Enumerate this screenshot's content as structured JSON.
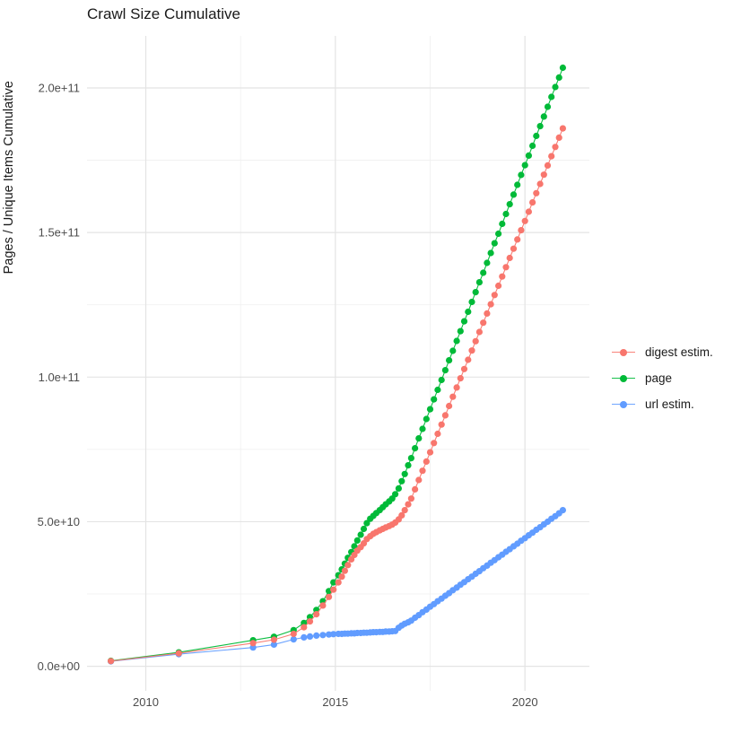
{
  "chart": {
    "title": "Crawl Size Cumulative",
    "ylabel": "Pages / Unique Items Cumulative",
    "xlabel": ""
  },
  "colors": {
    "background": "#FFFFFF",
    "grid_major": "#E4E4E4",
    "grid_minor": "#EFEFEF",
    "tick_text": "#4D4D4D",
    "title_text": "#1A1A1A"
  },
  "chart_data": {
    "type": "scatter",
    "title": "Crawl Size Cumulative",
    "xlabel": "",
    "ylabel": "Pages / Unique Items Cumulative",
    "legend_position": "right",
    "grid": true,
    "y_value_scale": 10000000000,
    "xlim": [
      2008.45,
      2021.7
    ],
    "ylim_e10": [
      -0.85,
      21.8
    ],
    "x_ticks": [
      {
        "label": "2010",
        "value": 2010
      },
      {
        "label": "2015",
        "value": 2015
      },
      {
        "label": "2020",
        "value": 2020
      }
    ],
    "y_ticks": [
      {
        "label": "0.0e+00",
        "value_e10": 0
      },
      {
        "label": "5.0e+10",
        "value_e10": 5
      },
      {
        "label": "1.0e+11",
        "value_e10": 10
      },
      {
        "label": "1.5e+11",
        "value_e10": 15
      },
      {
        "label": "2.0e+11",
        "value_e10": 20
      }
    ],
    "x_minor": [
      2012.5,
      2017.5
    ],
    "y_minor_e10": [
      2.5,
      7.5,
      12.5,
      17.5
    ],
    "x": [
      2009.08,
      2010.87,
      2012.83,
      2013.38,
      2013.9,
      2014.17,
      2014.33,
      2014.5,
      2014.67,
      2014.83,
      2014.95,
      2015.08,
      2015.17,
      2015.25,
      2015.33,
      2015.42,
      2015.5,
      2015.58,
      2015.67,
      2015.75,
      2015.83,
      2015.92,
      2016.0,
      2016.08,
      2016.17,
      2016.25,
      2016.33,
      2016.42,
      2016.5,
      2016.58,
      2016.67,
      2016.75,
      2016.83,
      2016.92,
      2017.0,
      2017.1,
      2017.2,
      2017.3,
      2017.4,
      2017.5,
      2017.6,
      2017.7,
      2017.8,
      2017.9,
      2018.0,
      2018.1,
      2018.2,
      2018.3,
      2018.4,
      2018.5,
      2018.6,
      2018.7,
      2018.8,
      2018.9,
      2019.0,
      2019.1,
      2019.2,
      2019.3,
      2019.4,
      2019.5,
      2019.6,
      2019.7,
      2019.8,
      2019.9,
      2020.0,
      2020.1,
      2020.2,
      2020.3,
      2020.4,
      2020.5,
      2020.6,
      2020.7,
      2020.8,
      2020.9,
      2021.0
    ],
    "series": [
      {
        "name": "digest estim.",
        "color": "#F8766D",
        "values_e10": [
          0.18,
          0.45,
          0.8,
          0.92,
          1.12,
          1.35,
          1.55,
          1.8,
          2.1,
          2.4,
          2.65,
          2.9,
          3.1,
          3.3,
          3.5,
          3.7,
          3.85,
          4.0,
          4.12,
          4.25,
          4.4,
          4.5,
          4.58,
          4.64,
          4.7,
          4.75,
          4.8,
          4.85,
          4.9,
          4.97,
          5.08,
          5.22,
          5.4,
          5.6,
          5.8,
          6.12,
          6.44,
          6.76,
          7.08,
          7.4,
          7.72,
          8.04,
          8.36,
          8.68,
          9.0,
          9.32,
          9.64,
          9.96,
          10.28,
          10.6,
          10.92,
          11.24,
          11.56,
          11.88,
          12.2,
          12.52,
          12.84,
          13.16,
          13.48,
          13.8,
          14.12,
          14.44,
          14.76,
          15.08,
          15.4,
          15.72,
          16.04,
          16.36,
          16.68,
          17.0,
          17.32,
          17.64,
          17.96,
          18.28,
          18.6
        ]
      },
      {
        "name": "page",
        "color": "#00BA38",
        "values_e10": [
          0.19,
          0.48,
          0.9,
          1.02,
          1.25,
          1.5,
          1.7,
          1.95,
          2.25,
          2.6,
          2.9,
          3.15,
          3.35,
          3.55,
          3.75,
          3.95,
          4.15,
          4.35,
          4.55,
          4.75,
          4.95,
          5.1,
          5.2,
          5.3,
          5.4,
          5.5,
          5.6,
          5.7,
          5.8,
          5.95,
          6.15,
          6.4,
          6.65,
          6.95,
          7.2,
          7.54,
          7.88,
          8.21,
          8.55,
          8.89,
          9.23,
          9.56,
          9.9,
          10.24,
          10.58,
          10.91,
          11.25,
          11.59,
          11.93,
          12.26,
          12.6,
          12.94,
          13.28,
          13.61,
          13.95,
          14.29,
          14.63,
          14.96,
          15.3,
          15.64,
          15.98,
          16.31,
          16.65,
          16.99,
          17.33,
          17.66,
          18.0,
          18.34,
          18.68,
          19.01,
          19.35,
          19.69,
          20.03,
          20.36,
          20.7
        ]
      },
      {
        "name": "url estim.",
        "color": "#619CFF",
        "values_e10": [
          0.17,
          0.42,
          0.65,
          0.75,
          0.93,
          1.0,
          1.03,
          1.06,
          1.08,
          1.1,
          1.11,
          1.12,
          1.12,
          1.13,
          1.13,
          1.14,
          1.14,
          1.15,
          1.15,
          1.16,
          1.16,
          1.17,
          1.18,
          1.18,
          1.19,
          1.19,
          1.2,
          1.2,
          1.21,
          1.22,
          1.33,
          1.41,
          1.47,
          1.52,
          1.58,
          1.68,
          1.77,
          1.87,
          1.96,
          2.06,
          2.15,
          2.25,
          2.34,
          2.44,
          2.53,
          2.63,
          2.72,
          2.82,
          2.91,
          3.01,
          3.1,
          3.2,
          3.29,
          3.39,
          3.48,
          3.58,
          3.67,
          3.77,
          3.86,
          3.96,
          4.05,
          4.15,
          4.24,
          4.34,
          4.43,
          4.53,
          4.62,
          4.72,
          4.81,
          4.91,
          5.0,
          5.1,
          5.19,
          5.29,
          5.4
        ]
      }
    ],
    "draw_order": [
      "url estim.",
      "page",
      "digest estim."
    ],
    "legend_items": [
      "digest estim.",
      "page",
      "url estim."
    ]
  }
}
